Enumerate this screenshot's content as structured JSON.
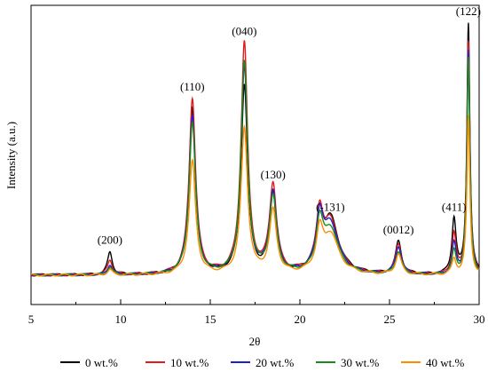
{
  "chart_data": {
    "type": "line",
    "xlabel": "2θ",
    "ylabel": "Intensity (a.u.)",
    "xlim": [
      5,
      30
    ],
    "xticks": [
      5,
      10,
      15,
      20,
      25,
      30
    ],
    "ylim": [
      0,
      1.15
    ],
    "legend_position": "bottom",
    "peaks": [
      {
        "label": "(200)",
        "pos": 9.4
      },
      {
        "label": "(110)",
        "pos": 14.0
      },
      {
        "label": "(040)",
        "pos": 16.9
      },
      {
        "label": "(130)",
        "pos": 18.5
      },
      {
        "label": "(-131)",
        "pos": 21.7
      },
      {
        "label": "(0012)",
        "pos": 25.5
      },
      {
        "label": "(411)",
        "pos": 28.6
      },
      {
        "label": "(122)",
        "pos": 29.4
      }
    ],
    "series": [
      {
        "name": "0 wt.%",
        "color": "#000000",
        "peak_heights": [
          0.09,
          0.66,
          0.75,
          0.31,
          0.22,
          0.13,
          0.22,
          1.0
        ],
        "shoulder_131": 0.18
      },
      {
        "name": "10 wt.%",
        "color": "#e31a1c",
        "peak_heights": [
          0.06,
          0.7,
          0.92,
          0.35,
          0.21,
          0.12,
          0.16,
          0.93
        ],
        "shoulder_131": 0.2
      },
      {
        "name": "20 wt.%",
        "color": "#1f1fcc",
        "peak_heights": [
          0.04,
          0.63,
          0.82,
          0.32,
          0.2,
          0.11,
          0.12,
          0.89
        ],
        "shoulder_131": 0.19
      },
      {
        "name": "30 wt.%",
        "color": "#1a8a1a",
        "peak_heights": [
          0.03,
          0.6,
          0.84,
          0.3,
          0.18,
          0.09,
          0.09,
          0.86
        ],
        "shoulder_131": 0.17
      },
      {
        "name": "40 wt.%",
        "color": "#ff8c00",
        "peak_heights": [
          0.02,
          0.45,
          0.58,
          0.25,
          0.16,
          0.08,
          0.06,
          0.63
        ],
        "shoulder_131": 0.14
      }
    ]
  }
}
